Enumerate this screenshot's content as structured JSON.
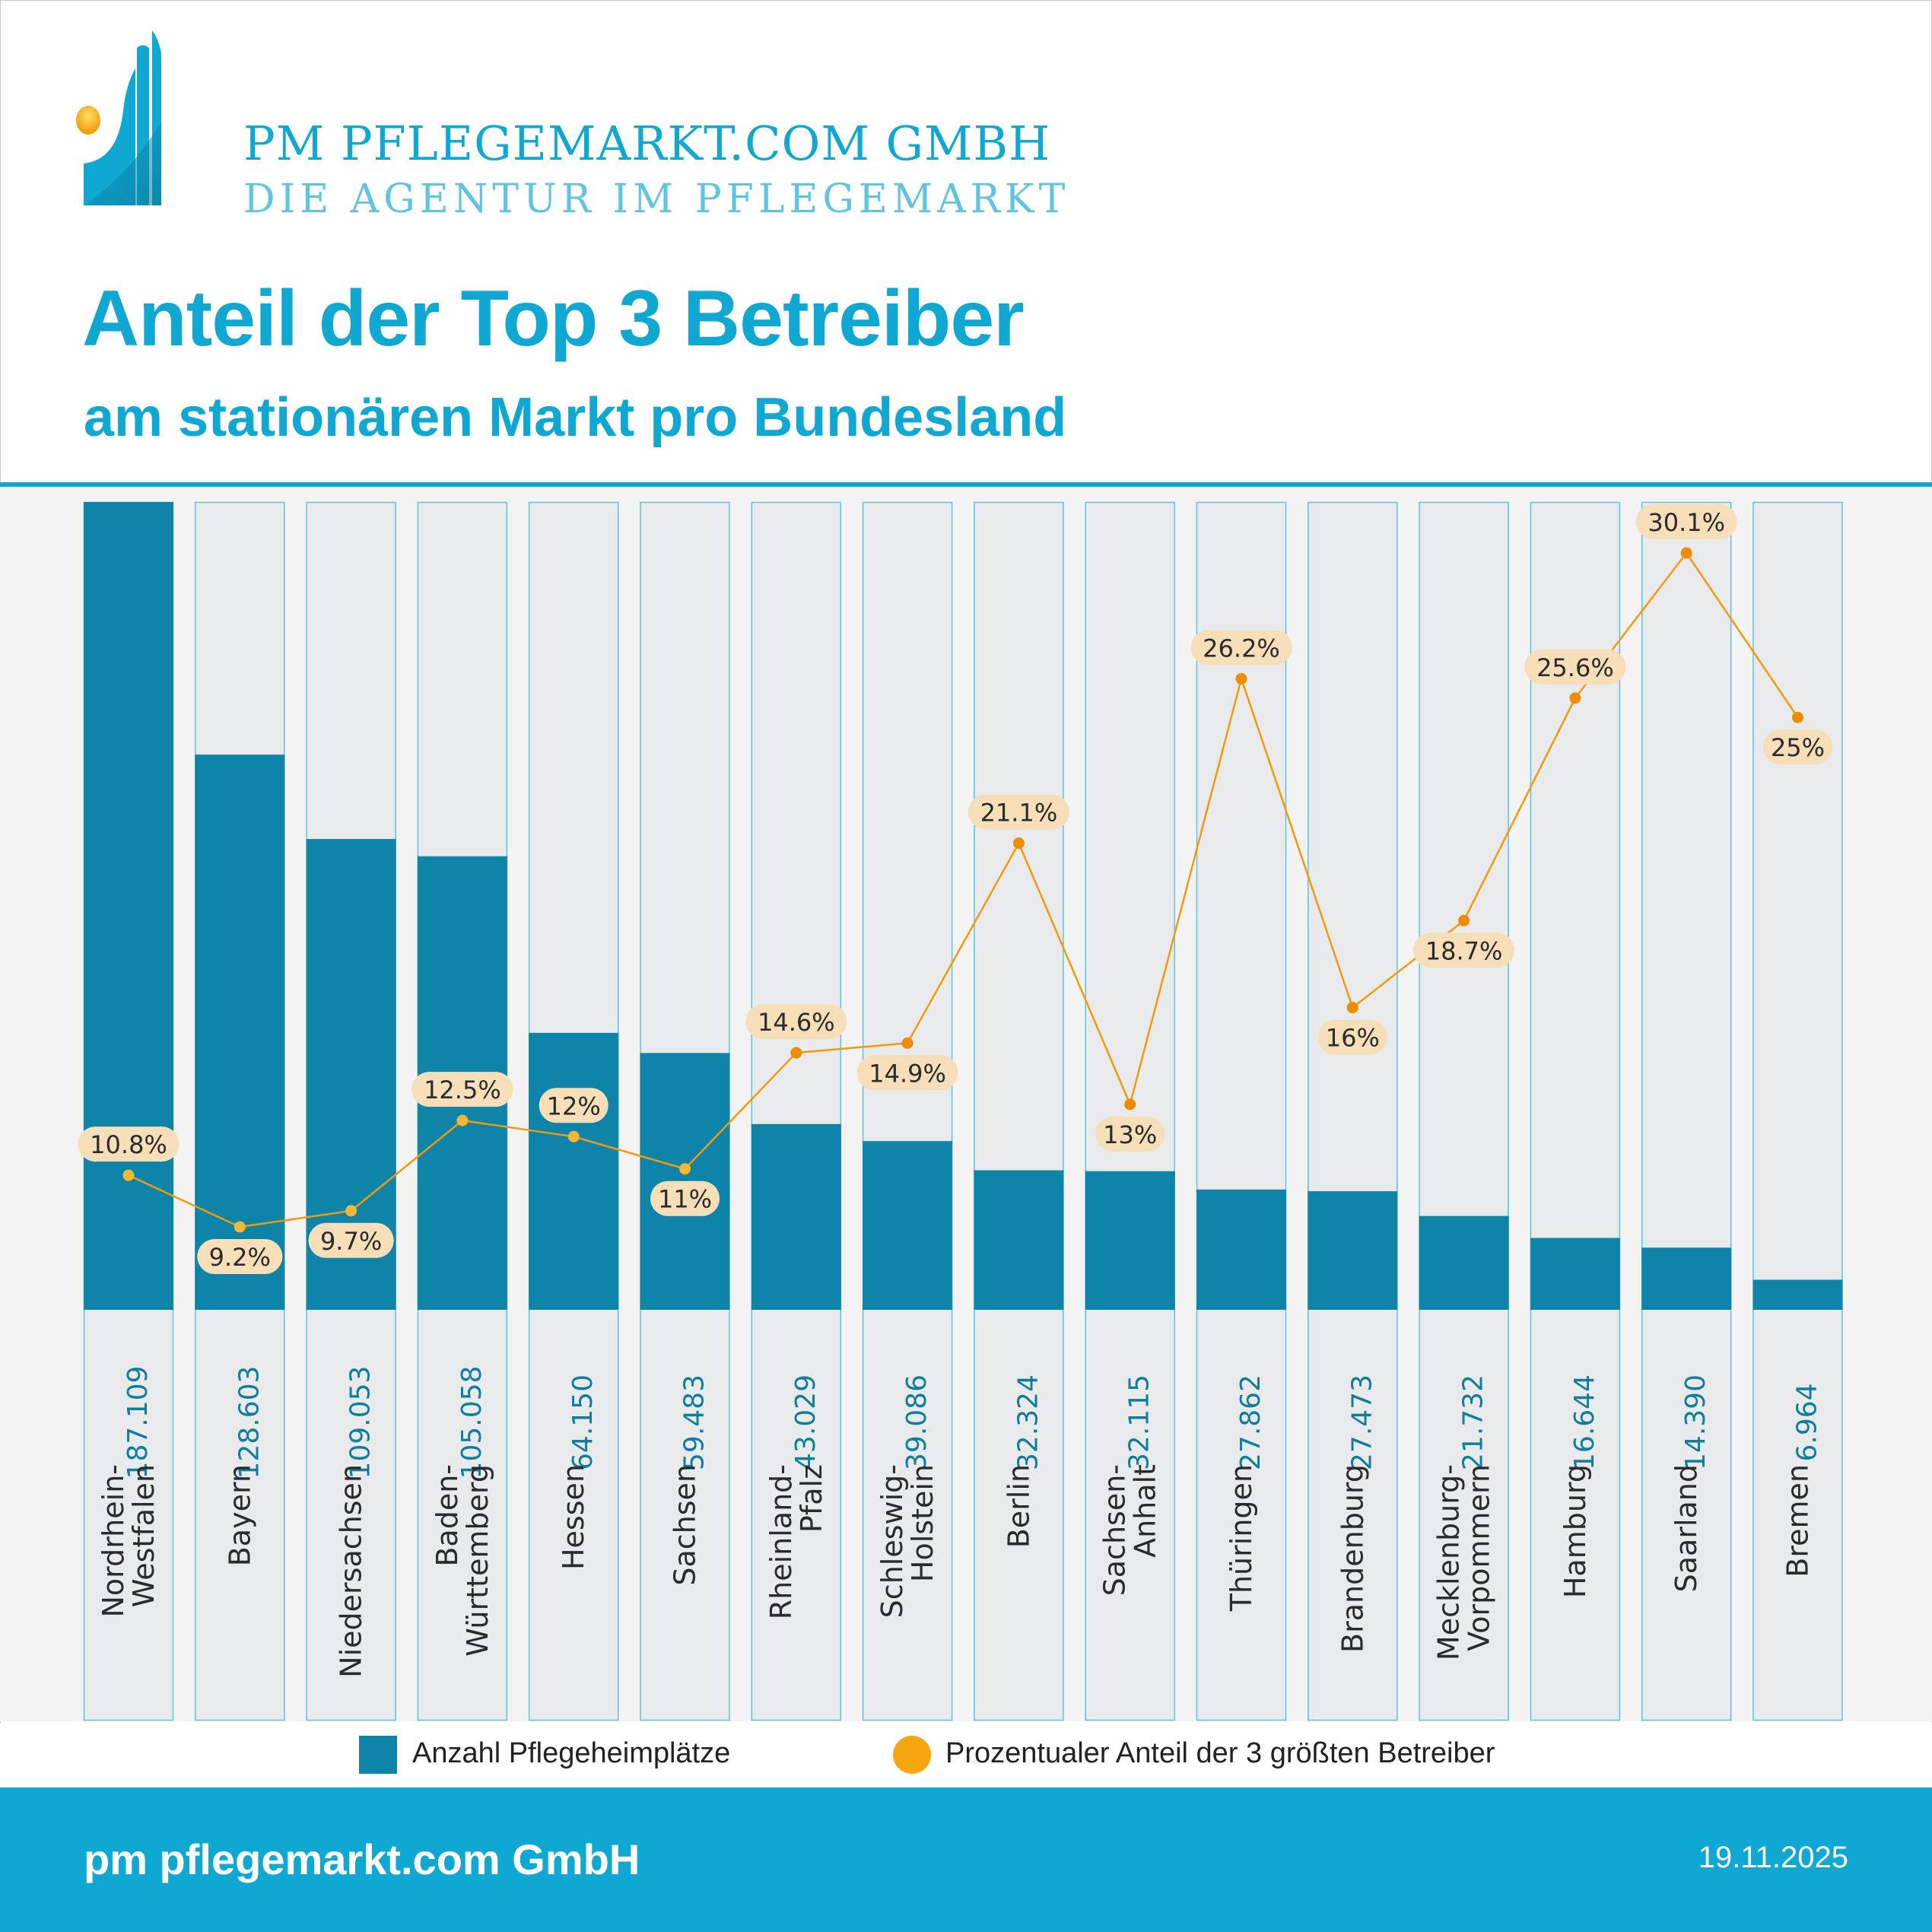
{
  "brand": {
    "name": "PM  PFLEGEMARKT.COM GMBH",
    "tagline": "DIE AGENTUR IM PFLEGEMARKT",
    "logo_icon": "rising-bars-with-sun-logo"
  },
  "header": {
    "title": "Anteil der Top 3 Betreiber",
    "subtitle": "am stationären Markt pro Bundesland"
  },
  "colors": {
    "accent": "#0ea8d2",
    "bar": "#0e84a8",
    "bar_track": "#e9eaeb",
    "bar_track_border": "#5cc3e0",
    "line": "#f29a0c",
    "dot_light": "#f7b733",
    "dot_dark": "#ee8c00",
    "label_bg": "#f5deb8",
    "value_text": "#0e7e9c"
  },
  "chart_data": {
    "type": "bar+line",
    "title": "Anteil der Top 3 Betreiber",
    "subtitle": "am stationären Markt pro Bundesland",
    "categories": [
      "Nordrhein-\nWestfalen",
      "Bayern",
      "Niedersachsen",
      "Baden-\nWürttemberg",
      "Hessen",
      "Sachsen",
      "Rheinland-\nPfalz",
      "Schleswig-\nHolstein",
      "Berlin",
      "Sachsen-\nAnhalt",
      "Thüringen",
      "Brandenburg",
      "Mecklenburg-\nVorpommern",
      "Hamburg",
      "Saarland",
      "Bremen"
    ],
    "series": [
      {
        "name": "Anzahl Pflegeheimplätze",
        "type": "bar",
        "values": [
          187109,
          128603,
          109053,
          105058,
          64150,
          59483,
          43029,
          39086,
          32324,
          32115,
          27862,
          27473,
          21732,
          16644,
          14390,
          6964
        ],
        "labels": [
          "187.109",
          "128.603",
          "109.053",
          "105.058",
          "64.150",
          "59.483",
          "43.029",
          "39.086",
          "32.324",
          "32.115",
          "27.862",
          "27.473",
          "21.732",
          "16.644",
          "14.390",
          "6.964"
        ]
      },
      {
        "name": "Prozentualer Anteil der 3 größten Betreiber",
        "type": "line",
        "values": [
          10.8,
          9.2,
          9.7,
          12.5,
          12.0,
          11.0,
          14.6,
          14.9,
          21.1,
          13.0,
          26.2,
          16.0,
          18.7,
          25.6,
          30.1,
          25.0
        ],
        "labels": [
          "10.8%",
          "9.2%",
          "9.7%",
          "12.5%",
          "12%",
          "11%",
          "14.6%",
          "14.9%",
          "21.1%",
          "13%",
          "26.2%",
          "16%",
          "18.7%",
          "25.6%",
          "30.1%",
          "25%"
        ],
        "label_position": [
          "above",
          "below",
          "below",
          "above",
          "above",
          "below",
          "above",
          "below",
          "above",
          "below",
          "above",
          "below",
          "below",
          "above",
          "above",
          "below"
        ]
      }
    ],
    "bar_ylim": [
      0,
      187109
    ],
    "line_ylim": [
      0,
      31.7
    ],
    "grid": false,
    "legend_position": "bottom-center"
  },
  "legend": {
    "bar_label": "Anzahl Pflegeheimplätze",
    "line_label": "Prozentualer Anteil der 3 größten Betreiber"
  },
  "footer": {
    "company": "pm pflegemarkt.com GmbH",
    "date": "19.11.2025"
  }
}
